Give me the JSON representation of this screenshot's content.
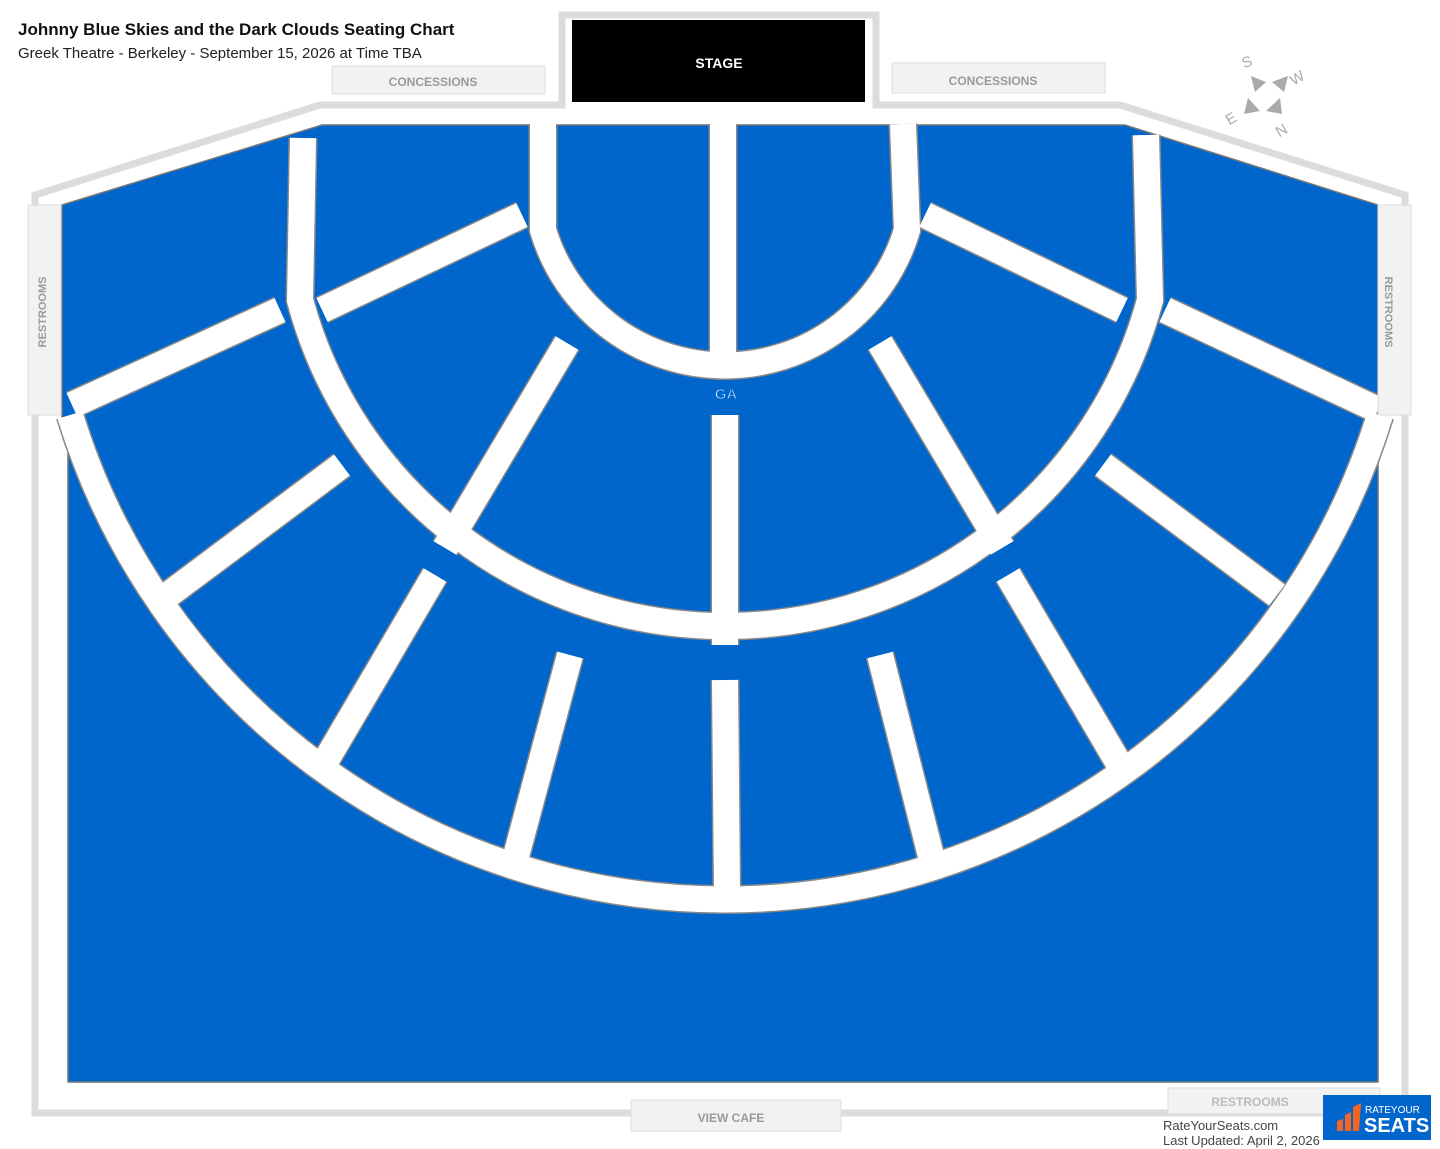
{
  "header": {
    "title": "Johnny Blue Skies and the Dark Clouds Seating Chart",
    "subtitle": "Greek Theatre - Berkeley - September 15, 2026 at Time TBA"
  },
  "venue": {
    "stage_label": "STAGE",
    "concessions_left": "CONCESSIONS",
    "concessions_right": "CONCESSIONS",
    "restrooms_left": "RESTROOMS",
    "restrooms_right": "RESTROOMS",
    "restrooms_bottom": "RESTROOMS",
    "view_cafe": "VIEW CAFE",
    "section_label": "GA"
  },
  "compass": {
    "n": "N",
    "s": "S",
    "e": "E",
    "w": "W"
  },
  "footer": {
    "site": "RateYourSeats.com",
    "updated": "Last Updated: April 2, 2026",
    "logo_text_top": "RATEYOUR",
    "logo_text_bottom": "SEATS"
  },
  "colors": {
    "section": "#0066cc",
    "stage": "#000000",
    "aisle": "#ffffff",
    "outline": "#888888",
    "logo_accent": "#f26522"
  }
}
